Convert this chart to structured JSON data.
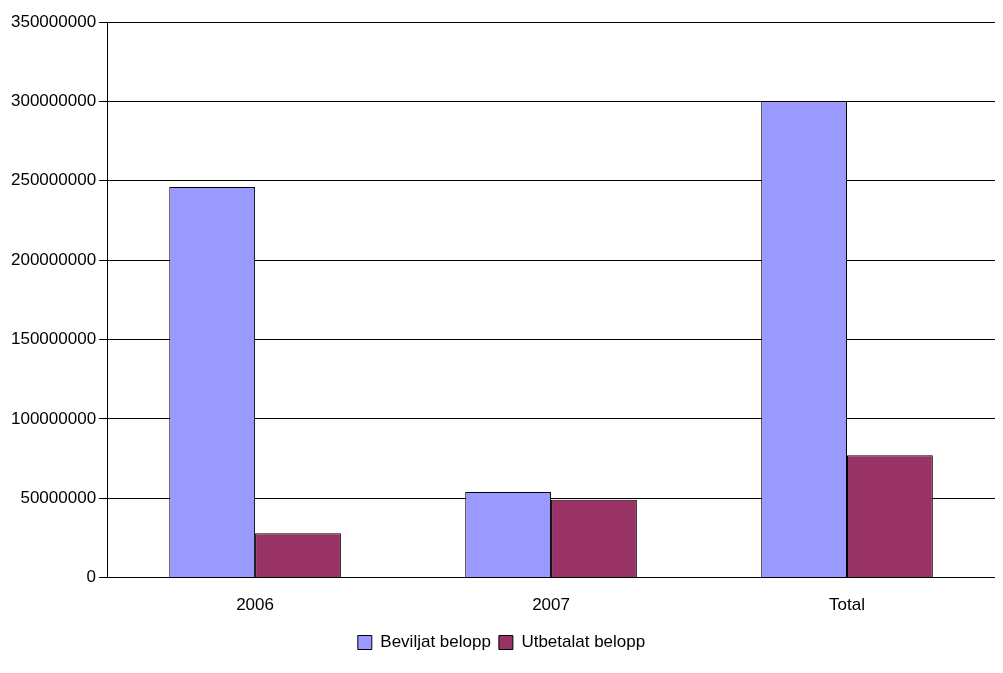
{
  "chart_data": {
    "type": "bar",
    "categories": [
      "2006",
      "2007",
      "Total"
    ],
    "series": [
      {
        "name": "Beviljat belopp",
        "color": "#9999ff",
        "values": [
          246000000,
          54000000,
          300000000
        ]
      },
      {
        "name": "Utbetalat belopp",
        "color": "#993366",
        "values": [
          28000000,
          49000000,
          77000000
        ]
      }
    ],
    "ylim": [
      0,
      350000000
    ],
    "yticks": [
      0,
      50000000,
      100000000,
      150000000,
      200000000,
      250000000,
      300000000,
      350000000
    ],
    "grid": "y",
    "legend": "bottom"
  }
}
